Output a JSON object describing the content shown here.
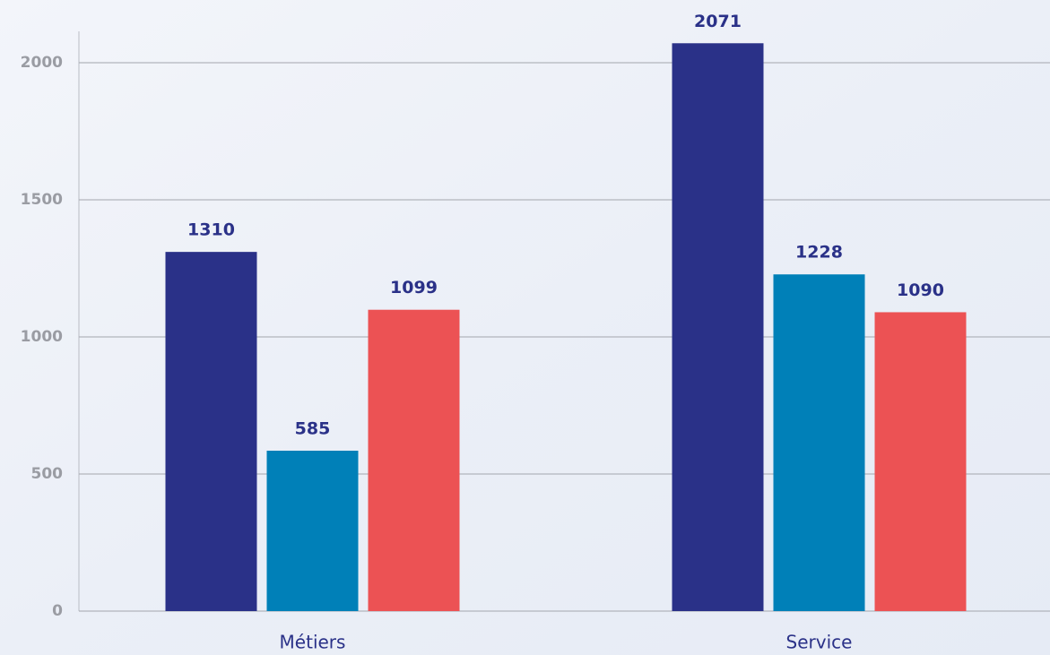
{
  "chart_data": {
    "type": "bar",
    "categories": [
      "Métiers",
      "Service"
    ],
    "series": [
      {
        "color": "#2a3188",
        "values": [
          1310,
          2071
        ]
      },
      {
        "color": "#0080b8",
        "values": [
          585,
          1228
        ]
      },
      {
        "color": "#ec5254",
        "values": [
          1099,
          1090
        ]
      }
    ],
    "ylim": [
      0,
      2100
    ],
    "yticks": [
      0,
      500,
      1000,
      1500,
      2000
    ],
    "grid": true
  }
}
